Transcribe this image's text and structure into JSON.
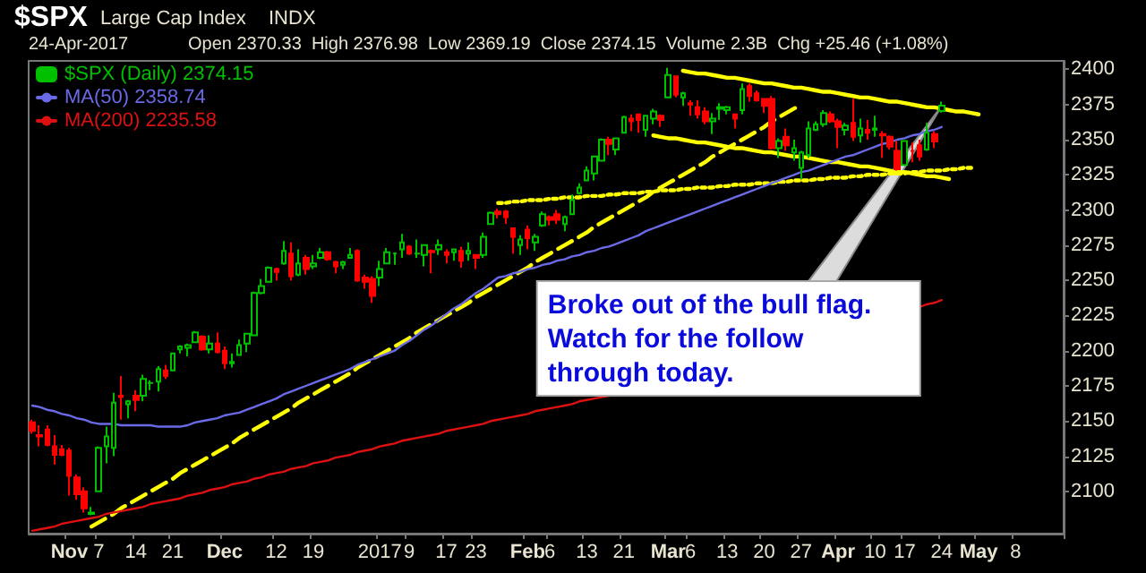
{
  "chart_data": {
    "type": "candlestick",
    "title": "$SPX",
    "subtitle": "Large Cap Index",
    "annotations": [
      "INDX",
      "24-Apr-2017",
      "Open 2370.33  High 2376.98  Low 2369.19  Close 2374.15  Volume 2.3B  Chg +25.46 (+1.08%)",
      "Broke out of the bull flag.\nWatch for the follow\nthrough today."
    ],
    "categories": [
      null,
      null,
      null,
      null,
      null,
      "Nov",
      null,
      null,
      null,
      "7",
      null,
      null,
      null,
      null,
      "14",
      null,
      null,
      null,
      null,
      "21",
      null,
      null,
      null,
      null,
      null,
      null,
      "Dec",
      null,
      null,
      null,
      null,
      null,
      null,
      "12",
      null,
      null,
      null,
      null,
      "19",
      null,
      null,
      null,
      null,
      null,
      null,
      null,
      null,
      "2017",
      null,
      null,
      null,
      "9",
      null,
      null,
      null,
      null,
      "17",
      null,
      null,
      null,
      "23",
      null,
      null,
      null,
      null,
      null,
      null,
      "Feb",
      null,
      null,
      "6",
      null,
      null,
      null,
      null,
      "13",
      null,
      null,
      null,
      null,
      "21",
      null,
      null,
      null,
      null,
      null,
      "Mar",
      null,
      null,
      "6",
      null,
      null,
      null,
      null,
      "13",
      null,
      null,
      null,
      null,
      "20",
      null,
      null,
      null,
      null,
      "27",
      null,
      null,
      null,
      null,
      "Apr",
      null,
      null,
      null,
      null,
      "10",
      null,
      null,
      null,
      "17",
      null,
      null,
      null,
      null,
      "24",
      null,
      null,
      null,
      null,
      "May",
      null,
      null,
      null,
      null,
      "8",
      null,
      null,
      null,
      null,
      null,
      null
    ],
    "ylim": [
      2070,
      2406
    ],
    "yticks": [
      2100,
      2125,
      2150,
      2175,
      2200,
      2225,
      2250,
      2275,
      2300,
      2325,
      2350,
      2375,
      2400
    ],
    "legend": "top left",
    "series": [
      {
        "type": "line",
        "color": "#ffff00",
        "line_style": "dashed",
        "values": [
          null,
          null,
          null,
          null,
          null,
          null,
          null,
          null,
          2075,
          2078,
          2081,
          2084,
          2088,
          2091,
          2094,
          2097,
          2100,
          2103,
          2106,
          2109,
          2113,
          2116,
          2119,
          2122,
          2125,
          2128,
          2131,
          2134,
          2138,
          2141,
          2144,
          2147,
          2150,
          2153,
          2156,
          2159,
          2163,
          2166,
          2169,
          2172,
          2175,
          2178,
          2181,
          2184,
          2188,
          2191,
          2194,
          2197,
          2200,
          2203,
          2206,
          2209,
          2213,
          2216,
          2219,
          2222,
          2225,
          2228,
          2231,
          2234,
          2238,
          2241,
          2244,
          2247,
          2250,
          2253,
          2256,
          2259,
          2263,
          2266,
          2269,
          2272,
          2275,
          2278,
          2281,
          2284,
          2288,
          2291,
          2294,
          2297,
          2300,
          2303,
          2306,
          2309,
          2313,
          2316,
          2319,
          2322,
          2325,
          2328,
          2331,
          2334,
          2338,
          2341,
          2344,
          2347,
          2350,
          2353,
          2356,
          2359,
          2363,
          2366,
          2369,
          2372,
          2375,
          null,
          null,
          null,
          null,
          null,
          null,
          null,
          null,
          null,
          null,
          null,
          null,
          null,
          null,
          null,
          null,
          null,
          null,
          null,
          null,
          null,
          null,
          null,
          null,
          null,
          null,
          null,
          null,
          null,
          null,
          null,
          null,
          null,
          null,
          null
        ]
      },
      {
        "type": "line",
        "color": "#ffff00",
        "line_style": "solid",
        "values": [
          null,
          null,
          null,
          null,
          null,
          null,
          null,
          null,
          null,
          null,
          null,
          null,
          null,
          null,
          null,
          null,
          null,
          null,
          null,
          null,
          null,
          null,
          null,
          null,
          null,
          null,
          null,
          null,
          null,
          null,
          null,
          null,
          null,
          null,
          null,
          null,
          null,
          null,
          null,
          null,
          null,
          null,
          null,
          null,
          null,
          null,
          null,
          null,
          null,
          null,
          null,
          null,
          null,
          null,
          null,
          null,
          null,
          null,
          null,
          null,
          null,
          null,
          null,
          null,
          null,
          null,
          null,
          null,
          null,
          null,
          null,
          null,
          null,
          null,
          null,
          null,
          null,
          null,
          null,
          null,
          null,
          null,
          null,
          null,
          null,
          null,
          null,
          null,
          2399,
          2398,
          2397,
          2397,
          2396,
          2395,
          2394,
          2394,
          2393,
          2392,
          2391,
          2390,
          2390,
          2389,
          2388,
          2387,
          2387,
          2386,
          2385,
          2384,
          2384,
          2383,
          2382,
          2381,
          2380,
          2380,
          2379,
          2378,
          2377,
          2377,
          2376,
          2375,
          2374,
          2373,
          2373,
          2372,
          2371,
          2370,
          2370,
          2369,
          2368,
          null,
          null,
          null,
          null,
          null,
          null,
          null,
          null,
          null,
          null,
          null
        ]
      },
      {
        "type": "line",
        "color": "#ffff00",
        "line_style": "solid",
        "values": [
          null,
          null,
          null,
          null,
          null,
          null,
          null,
          null,
          null,
          null,
          null,
          null,
          null,
          null,
          null,
          null,
          null,
          null,
          null,
          null,
          null,
          null,
          null,
          null,
          null,
          null,
          null,
          null,
          null,
          null,
          null,
          null,
          null,
          null,
          null,
          null,
          null,
          null,
          null,
          null,
          null,
          null,
          null,
          null,
          null,
          null,
          null,
          null,
          null,
          null,
          null,
          null,
          null,
          null,
          null,
          null,
          null,
          null,
          null,
          null,
          null,
          null,
          null,
          null,
          null,
          null,
          null,
          null,
          null,
          null,
          null,
          null,
          null,
          null,
          null,
          null,
          null,
          null,
          null,
          null,
          null,
          null,
          null,
          null,
          2353,
          2352,
          2351,
          2351,
          2350,
          2349,
          2348,
          2348,
          2347,
          2346,
          2345,
          2344,
          2344,
          2343,
          2342,
          2341,
          2341,
          2340,
          2339,
          2338,
          2338,
          2337,
          2336,
          2335,
          2334,
          2334,
          2333,
          2332,
          2331,
          2331,
          2330,
          2329,
          2328,
          2327,
          2327,
          2326,
          2325,
          2324,
          2324,
          2323,
          2322,
          null,
          null,
          null,
          null,
          null,
          null,
          null,
          null,
          null,
          null,
          null,
          null,
          null,
          null,
          null
        ]
      },
      {
        "type": "line",
        "color": "#ffff00",
        "line_style": "dotted",
        "values": [
          null,
          null,
          null,
          null,
          null,
          null,
          null,
          null,
          null,
          null,
          null,
          null,
          null,
          null,
          null,
          null,
          null,
          null,
          null,
          null,
          null,
          null,
          null,
          null,
          null,
          null,
          null,
          null,
          null,
          null,
          null,
          null,
          null,
          null,
          null,
          null,
          null,
          null,
          null,
          null,
          null,
          null,
          null,
          null,
          null,
          null,
          null,
          null,
          null,
          null,
          null,
          null,
          null,
          null,
          null,
          null,
          null,
          null,
          null,
          null,
          null,
          null,
          null,
          2305,
          2305,
          2306,
          2306,
          2307,
          2307,
          2307,
          2308,
          2308,
          2309,
          2309,
          2309,
          2310,
          2310,
          2310,
          2311,
          2311,
          2312,
          2312,
          2312,
          2313,
          2313,
          2314,
          2314,
          2314,
          2315,
          2315,
          2316,
          2316,
          2316,
          2317,
          2317,
          2318,
          2318,
          2318,
          2319,
          2319,
          2319,
          2320,
          2320,
          2321,
          2321,
          2321,
          2322,
          2322,
          2323,
          2323,
          2323,
          2324,
          2324,
          2325,
          2325,
          2325,
          2326,
          2326,
          2326,
          2327,
          2327,
          2328,
          2328,
          2328,
          2329,
          2329,
          2330,
          2330,
          null,
          null,
          null,
          null,
          null,
          null,
          null,
          null,
          null,
          null,
          null,
          null
        ]
      },
      {
        "type": "line",
        "name": "MA(50) 2358.74",
        "color": "#6a6ae6",
        "line_style": "solid",
        "values": [
          2161,
          2160,
          2158,
          2157,
          2155,
          2154,
          2152,
          2151,
          2149,
          2148,
          2148,
          2148,
          2147,
          2147,
          2147,
          2147,
          2147,
          2146,
          2146,
          2146,
          2146,
          2147,
          2149,
          2150,
          2151,
          2152,
          2154,
          2155,
          2156,
          2158,
          2160,
          2162,
          2164,
          2166,
          2169,
          2171,
          2173,
          2175,
          2177,
          2179,
          2181,
          2183,
          2185,
          2187,
          2190,
          2192,
          2194,
          2196,
          2198,
          2200,
          2204,
          2207,
          2211,
          2215,
          2218,
          2222,
          2226,
          2230,
          2233,
          2237,
          2241,
          2244,
          2248,
          2252,
          2253,
          2255,
          2256,
          2258,
          2259,
          2261,
          2262,
          2264,
          2265,
          2267,
          2268,
          2270,
          2271,
          2273,
          2274,
          2276,
          2278,
          2280,
          2282,
          2285,
          2287,
          2289,
          2291,
          2293,
          2295,
          2297,
          2299,
          2301,
          2303,
          2305,
          2307,
          2309,
          2311,
          2313,
          2315,
          2317,
          2319,
          2321,
          2323,
          2325,
          2327,
          2328,
          2330,
          2332,
          2334,
          2336,
          2338,
          2339,
          2341,
          2343,
          2345,
          2347,
          2348,
          2350,
          2351,
          2353,
          2354,
          2356,
          2357,
          2359,
          null,
          null,
          null,
          null,
          null,
          null,
          null,
          null,
          null,
          null,
          null,
          null,
          null,
          null,
          null,
          null
        ]
      },
      {
        "type": "line",
        "name": "MA(200) 2235.58",
        "color": "#dd1111",
        "line_style": "solid",
        "values": [
          2072,
          2073,
          2074,
          2075,
          2077,
          2078,
          2079,
          2080,
          2081,
          2082,
          2084,
          2085,
          2086,
          2087,
          2088,
          2089,
          2091,
          2092,
          2093,
          2094,
          2095,
          2097,
          2098,
          2099,
          2101,
          2102,
          2103,
          2105,
          2106,
          2107,
          2109,
          2110,
          2112,
          2113,
          2114,
          2116,
          2117,
          2118,
          2120,
          2121,
          2122,
          2124,
          2125,
          2126,
          2128,
          2129,
          2130,
          2132,
          2133,
          2134,
          2136,
          2137,
          2138,
          2139,
          2140,
          2141,
          2143,
          2144,
          2145,
          2146,
          2147,
          2148,
          2150,
          2151,
          2152,
          2153,
          2154,
          2155,
          2157,
          2158,
          2159,
          2160,
          2161,
          2162,
          2164,
          2165,
          2166,
          2167,
          2168,
          null,
          null,
          null,
          null,
          null,
          null,
          null,
          null,
          null,
          null,
          null,
          null,
          null,
          null,
          null,
          null,
          null,
          null,
          null,
          null,
          null,
          null,
          null,
          null,
          null,
          null,
          null,
          null,
          null,
          null,
          null,
          null,
          null,
          null,
          null,
          null,
          null,
          null,
          null,
          null,
          null,
          2231,
          2233,
          2234,
          2236,
          null,
          null,
          null,
          null,
          null,
          null,
          null,
          null,
          null,
          null,
          null,
          null,
          null,
          null,
          null,
          null
        ]
      },
      {
        "name": "$SPX (Daily) 2374.15",
        "color": "#00c000",
        "colors": [
          "#ff0000",
          "#ff0000",
          "#ff0000",
          "#ff0000",
          "#ff0000",
          "#ff0000",
          "#ff0000",
          "#ff0000",
          "#00c000",
          "#00c000",
          "#00c000",
          "#00c000",
          "#ff0000",
          "#00c000",
          "#ff0000",
          "#00c000",
          "#00c000",
          "#00c000",
          "#ff0000",
          "#00c000",
          "#00c000",
          "#00c000",
          "#00c000",
          "#ff0000",
          "#00c000",
          "#ff0000",
          "#ff0000",
          "#00c000",
          "#00c000",
          "#00c000",
          "#00c000",
          "#00c000",
          "#00c000",
          "#ff0000",
          "#00c000",
          "#ff0000",
          "#00c000",
          "#ff0000",
          "#00c000",
          "#00c000",
          "#ff0000",
          "#ff0000",
          "#00c000",
          "#00c000",
          "#ff0000",
          "#ff0000",
          "#ff0000",
          "#00c000",
          "#00c000",
          "#00c000",
          "#00c000",
          "#ff0000",
          "#00c000",
          "#00c000",
          "#ff0000",
          "#00c000",
          "#ff0000",
          "#00c000",
          "#ff0000",
          "#00c000",
          "#ff0000",
          "#00c000",
          "#00c000",
          "#ff0000",
          "#ff0000",
          "#ff0000",
          "#00c000",
          "#ff0000",
          "#00c000",
          "#00c000",
          "#ff0000",
          "#ff0000",
          "#00c000",
          "#00c000",
          "#00c000",
          "#00c000",
          "#00c000",
          "#00c000",
          "#ff0000",
          "#00c000",
          "#00c000",
          "#ff0000",
          "#ff0000",
          "#00c000",
          "#00c000",
          "#ff0000",
          "#00c000",
          "#ff0000",
          "#00c000",
          "#ff0000",
          "#ff0000",
          "#ff0000",
          "#00c000",
          "#00c000",
          "#00c000",
          "#ff0000",
          "#00c000",
          "#ff0000",
          "#ff0000",
          "#ff0000",
          "#ff0000",
          "#00c000",
          "#ff0000",
          "#00c000",
          "#00c000",
          "#00c000",
          "#00c000",
          "#00c000",
          "#ff0000",
          "#ff0000",
          "#00c000",
          "#ff0000",
          "#00c000",
          "#ff0000",
          "#00c000",
          "#ff0000",
          "#ff0000",
          "#ff0000",
          "#00c000",
          "#ff0000",
          "#ff0000",
          "#00c000",
          "#ff0000",
          "#00c000",
          null,
          null,
          null,
          null,
          null,
          null,
          null,
          null,
          null,
          null,
          null,
          null,
          null,
          null,
          null,
          null
        ],
        "ohlc": [
          [
            2149,
            2151,
            2141,
            2143
          ],
          [
            2140,
            2147,
            2132,
            2139
          ],
          [
            2144,
            2147,
            2132,
            2133
          ],
          [
            2132,
            2140,
            2119,
            2126
          ],
          [
            2130,
            2133,
            2125,
            2126
          ],
          [
            2129,
            2131,
            2097,
            2111
          ],
          [
            2110,
            2112,
            2094,
            2098
          ],
          [
            2100,
            2103,
            2085,
            2088
          ],
          [
            2084,
            2089,
            2083,
            2085
          ],
          [
            2100,
            2132,
            2100,
            2131
          ],
          [
            2132,
            2146,
            2120,
            2139
          ],
          [
            2131,
            2170,
            2125,
            2163
          ],
          [
            2168,
            2182,
            2151,
            2167
          ],
          [
            2162,
            2165,
            2152,
            2164
          ],
          [
            2168,
            2172,
            2157,
            2165
          ],
          [
            2168,
            2183,
            2164,
            2180
          ],
          [
            2177,
            2179,
            2172,
            2177
          ],
          [
            2178,
            2189,
            2171,
            2187
          ],
          [
            2186,
            2190,
            2180,
            2182
          ],
          [
            2186,
            2198,
            2186,
            2198
          ],
          [
            2201,
            2204,
            2198,
            2203
          ],
          [
            2202,
            2205,
            2196,
            2204
          ],
          [
            2206,
            2214,
            2206,
            2213
          ],
          [
            2210,
            2211,
            2200,
            2201
          ],
          [
            2201,
            2211,
            2198,
            2205
          ],
          [
            2205,
            2213,
            2198,
            2199
          ],
          [
            2200,
            2203,
            2187,
            2191
          ],
          [
            2191,
            2198,
            2188,
            2192
          ],
          [
            2197,
            2208,
            2197,
            2204
          ],
          [
            2205,
            2212,
            2199,
            2212
          ],
          [
            2211,
            2242,
            2211,
            2241
          ],
          [
            2241,
            2251,
            2240,
            2246
          ],
          [
            2249,
            2260,
            2249,
            2259
          ],
          [
            2258,
            2259,
            2250,
            2256
          ],
          [
            2262,
            2278,
            2261,
            2271
          ],
          [
            2269,
            2277,
            2250,
            2253
          ],
          [
            2254,
            2272,
            2253,
            2262
          ],
          [
            2266,
            2268,
            2254,
            2258
          ],
          [
            2260,
            2268,
            2258,
            2262
          ],
          [
            2266,
            2273,
            2265,
            2270
          ],
          [
            2270,
            2271,
            2264,
            2265
          ],
          [
            2263,
            2264,
            2255,
            2260
          ],
          [
            2261,
            2264,
            2258,
            2263
          ],
          [
            2266,
            2273,
            2266,
            2268
          ],
          [
            2271,
            2272,
            2249,
            2250
          ],
          [
            2252,
            2254,
            2244,
            2249
          ],
          [
            2251,
            2253,
            2234,
            2239
          ],
          [
            2252,
            2264,
            2246,
            2258
          ],
          [
            2262,
            2273,
            2262,
            2270
          ],
          [
            2269,
            2270,
            2261,
            2269
          ],
          [
            2272,
            2283,
            2266,
            2277
          ],
          [
            2274,
            2275,
            2268,
            2269
          ],
          [
            2269,
            2279,
            2266,
            2269
          ],
          [
            2268,
            2275,
            2260,
            2275
          ],
          [
            2271,
            2272,
            2255,
            2270
          ],
          [
            2272,
            2279,
            2268,
            2275
          ],
          [
            2270,
            2272,
            2262,
            2268
          ],
          [
            2270,
            2272,
            2264,
            2272
          ],
          [
            2271,
            2274,
            2259,
            2264
          ],
          [
            2269,
            2277,
            2264,
            2271
          ],
          [
            2268,
            2268,
            2258,
            2266
          ],
          [
            2268,
            2284,
            2266,
            2281
          ],
          [
            2290,
            2299,
            2290,
            2298
          ],
          [
            2299,
            2301,
            2294,
            2297
          ],
          [
            2299,
            2300,
            2290,
            2295
          ],
          [
            2287,
            2287,
            2269,
            2281
          ],
          [
            2275,
            2282,
            2268,
            2279
          ],
          [
            2286,
            2289,
            2272,
            2280
          ],
          [
            2277,
            2283,
            2271,
            2281
          ],
          [
            2289,
            2299,
            2288,
            2297
          ],
          [
            2295,
            2296,
            2289,
            2293
          ],
          [
            2297,
            2300,
            2290,
            2293
          ],
          [
            2290,
            2296,
            2285,
            2295
          ],
          [
            2297,
            2311,
            2297,
            2307
          ],
          [
            2312,
            2319,
            2311,
            2316
          ],
          [
            2321,
            2331,
            2321,
            2328
          ],
          [
            2326,
            2338,
            2321,
            2338
          ],
          [
            2335,
            2351,
            2335,
            2350
          ],
          [
            2350,
            2352,
            2339,
            2347
          ],
          [
            2343,
            2351,
            2339,
            2351
          ],
          [
            2355,
            2367,
            2355,
            2366
          ],
          [
            2365,
            2368,
            2356,
            2363
          ],
          [
            2368,
            2368,
            2355,
            2364
          ],
          [
            2357,
            2367,
            2352,
            2367
          ],
          [
            2365,
            2372,
            2361,
            2370
          ],
          [
            2367,
            2368,
            2359,
            2364
          ],
          [
            2380,
            2401,
            2380,
            2396
          ],
          [
            2395,
            2395,
            2380,
            2382
          ],
          [
            2380,
            2384,
            2374,
            2383
          ],
          [
            2376,
            2378,
            2367,
            2375
          ],
          [
            2373,
            2378,
            2365,
            2368
          ],
          [
            2370,
            2373,
            2361,
            2363
          ],
          [
            2363,
            2369,
            2354,
            2365
          ],
          [
            2372,
            2376,
            2364,
            2373
          ],
          [
            2371,
            2374,
            2368,
            2373
          ],
          [
            2368,
            2368,
            2358,
            2365
          ],
          [
            2371,
            2390,
            2368,
            2386
          ],
          [
            2388,
            2390,
            2377,
            2381
          ],
          [
            2383,
            2385,
            2377,
            2378
          ],
          [
            2379,
            2379,
            2369,
            2374
          ],
          [
            2379,
            2381,
            2343,
            2344
          ],
          [
            2344,
            2351,
            2337,
            2349
          ],
          [
            2352,
            2358,
            2342,
            2346
          ],
          [
            2341,
            2350,
            2335,
            2344
          ],
          [
            2330,
            2342,
            2322,
            2341
          ],
          [
            2339,
            2363,
            2337,
            2358
          ],
          [
            2357,
            2363,
            2356,
            2361
          ],
          [
            2361,
            2371,
            2359,
            2369
          ],
          [
            2368,
            2370,
            2362,
            2363
          ],
          [
            2363,
            2365,
            2344,
            2359
          ],
          [
            2357,
            2362,
            2353,
            2360
          ],
          [
            2362,
            2379,
            2349,
            2352
          ],
          [
            2353,
            2365,
            2348,
            2358
          ],
          [
            2357,
            2364,
            2350,
            2355
          ],
          [
            2357,
            2367,
            2352,
            2358
          ],
          [
            2354,
            2356,
            2337,
            2353
          ],
          [
            2352,
            2353,
            2343,
            2345
          ],
          [
            2342,
            2349,
            2328,
            2329
          ],
          [
            2332,
            2349,
            2332,
            2349
          ],
          [
            2342,
            2348,
            2334,
            2342
          ],
          [
            2346,
            2350,
            2335,
            2338
          ],
          [
            2343,
            2362,
            2342,
            2355
          ],
          [
            2354,
            2356,
            2344,
            2348.69
          ],
          [
            2370.33,
            2376.98,
            2369.19,
            2374.15
          ],
          null,
          null,
          null,
          null,
          null,
          null,
          null,
          null,
          null,
          null,
          null,
          null,
          null,
          null,
          null,
          null
        ]
      }
    ]
  }
}
